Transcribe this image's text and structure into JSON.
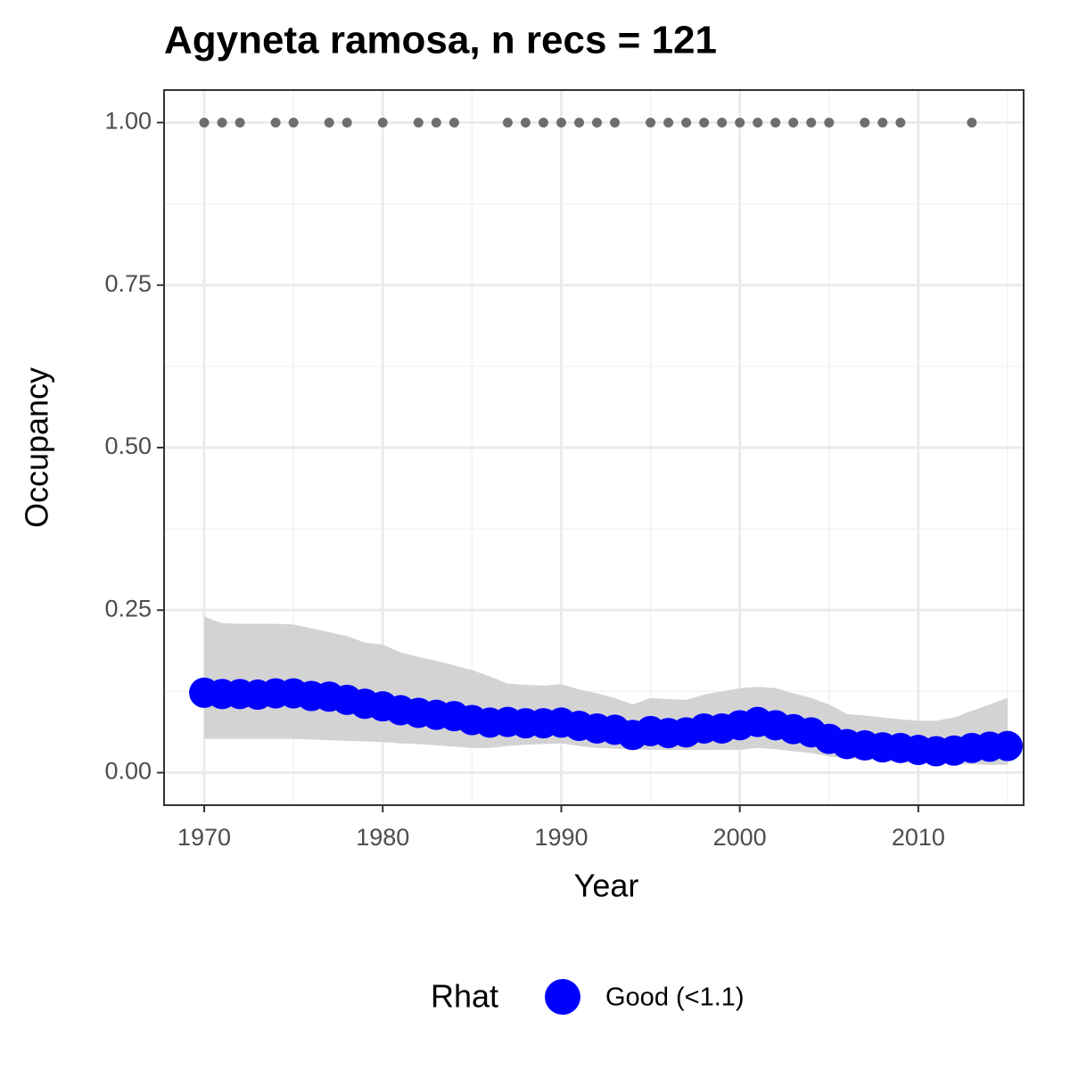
{
  "chart_data": {
    "type": "line",
    "title": "Agyneta ramosa, n recs = 121",
    "x_label": "Year",
    "y_label": "Occupancy",
    "x": [
      1970,
      1971,
      1972,
      1973,
      1974,
      1975,
      1976,
      1977,
      1978,
      1979,
      1980,
      1981,
      1982,
      1983,
      1984,
      1985,
      1986,
      1987,
      1988,
      1989,
      1990,
      1991,
      1992,
      1993,
      1994,
      1995,
      1996,
      1997,
      1998,
      1999,
      2000,
      2001,
      2002,
      2003,
      2004,
      2005,
      2006,
      2007,
      2008,
      2009,
      2010,
      2011,
      2012,
      2013,
      2014,
      2015
    ],
    "series": [
      {
        "name": "Good (<1.1)",
        "color": "#0000ff",
        "values": [
          0.123,
          0.121,
          0.121,
          0.12,
          0.122,
          0.122,
          0.118,
          0.117,
          0.112,
          0.106,
          0.102,
          0.096,
          0.092,
          0.089,
          0.087,
          0.081,
          0.077,
          0.078,
          0.076,
          0.076,
          0.077,
          0.072,
          0.068,
          0.066,
          0.058,
          0.064,
          0.061,
          0.062,
          0.068,
          0.068,
          0.073,
          0.078,
          0.073,
          0.067,
          0.062,
          0.052,
          0.044,
          0.042,
          0.039,
          0.038,
          0.035,
          0.033,
          0.034,
          0.038,
          0.04,
          0.041
        ]
      }
    ],
    "band": {
      "color": "#d3d3d3",
      "upper": [
        0.24,
        0.23,
        0.229,
        0.229,
        0.229,
        0.228,
        0.222,
        0.216,
        0.21,
        0.2,
        0.197,
        0.185,
        0.178,
        0.172,
        0.165,
        0.158,
        0.148,
        0.137,
        0.135,
        0.134,
        0.136,
        0.128,
        0.122,
        0.115,
        0.105,
        0.115,
        0.113,
        0.112,
        0.12,
        0.125,
        0.13,
        0.132,
        0.13,
        0.122,
        0.115,
        0.105,
        0.09,
        0.088,
        0.085,
        0.082,
        0.08,
        0.08,
        0.085,
        0.095,
        0.105,
        0.115
      ],
      "lower": [
        0.052,
        0.052,
        0.052,
        0.052,
        0.052,
        0.052,
        0.051,
        0.05,
        0.049,
        0.048,
        0.047,
        0.045,
        0.044,
        0.042,
        0.04,
        0.038,
        0.038,
        0.041,
        0.043,
        0.044,
        0.045,
        0.041,
        0.038,
        0.037,
        0.036,
        0.035,
        0.035,
        0.035,
        0.035,
        0.035,
        0.035,
        0.038,
        0.036,
        0.033,
        0.03,
        0.025,
        0.022,
        0.02,
        0.018,
        0.016,
        0.015,
        0.014,
        0.013,
        0.013,
        0.012,
        0.012
      ]
    },
    "detections": {
      "color": "#6e6e6e",
      "x": [
        1970,
        1971,
        1972,
        1974,
        1975,
        1977,
        1978,
        1980,
        1982,
        1983,
        1984,
        1987,
        1988,
        1989,
        1990,
        1991,
        1992,
        1993,
        1995,
        1996,
        1997,
        1998,
        1999,
        2000,
        2001,
        2002,
        2003,
        2004,
        2005,
        2007,
        2008,
        2009,
        2013
      ],
      "values": [
        1,
        1,
        1,
        1,
        1,
        1,
        1,
        1,
        1,
        1,
        1,
        1,
        1,
        1,
        1,
        1,
        1,
        1,
        1,
        1,
        1,
        1,
        1,
        1,
        1,
        1,
        1,
        1,
        1,
        1,
        1,
        1,
        1
      ]
    },
    "xlim": [
      1967.75,
      2015.9
    ],
    "ylim": [
      -0.05,
      1.05
    ],
    "xticks": [
      1970,
      1980,
      1990,
      2000,
      2010
    ],
    "yticks": [
      {
        "value": 0,
        "label": "0.00"
      },
      {
        "value": 0.25,
        "label": "0.25"
      },
      {
        "value": 0.5,
        "label": "0.50"
      },
      {
        "value": 0.75,
        "label": "0.75"
      },
      {
        "value": 1,
        "label": "1.00"
      }
    ],
    "minor_xticks": [
      1975,
      1985,
      1995,
      2005,
      2015
    ],
    "minor_yticks": [
      0.125,
      0.375,
      0.625,
      0.875
    ],
    "grid": true,
    "legend_title": "Rhat",
    "legend_position": "bottom"
  }
}
